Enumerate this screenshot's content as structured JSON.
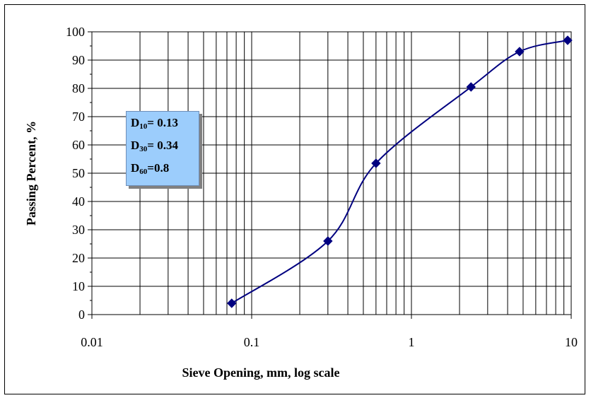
{
  "chart_data": {
    "type": "scatter",
    "xscale": "log",
    "xlim": [
      0.01,
      10
    ],
    "ylim": [
      0,
      100
    ],
    "ytick_step": 10,
    "grid": true,
    "xlabel": "Sieve Opening, mm, log scale",
    "ylabel": "Passing Percent, %",
    "x_tick_labels": [
      "0.01",
      "0.1",
      "1",
      "10"
    ],
    "y_tick_labels": [
      "0",
      "10",
      "20",
      "30",
      "40",
      "50",
      "60",
      "70",
      "80",
      "90",
      "100"
    ],
    "series": [
      {
        "color": "#000080",
        "marker": "diamond",
        "line": "smooth",
        "points": [
          {
            "x": 0.075,
            "y": 4
          },
          {
            "x": 0.3,
            "y": 26
          },
          {
            "x": 0.6,
            "y": 53.5
          },
          {
            "x": 2.36,
            "y": 80.5
          },
          {
            "x": 4.75,
            "y": 93
          },
          {
            "x": 9.5,
            "y": 97
          }
        ]
      }
    ],
    "annotation": {
      "lines": [
        {
          "prefix": "D",
          "sub": "10",
          "text": "= 0.13"
        },
        {
          "prefix": "D",
          "sub": "30",
          "text": "= 0.34"
        },
        {
          "prefix": "D",
          "sub": "60",
          "text": "=0.8"
        }
      ],
      "background": "#9ccdfc"
    }
  }
}
